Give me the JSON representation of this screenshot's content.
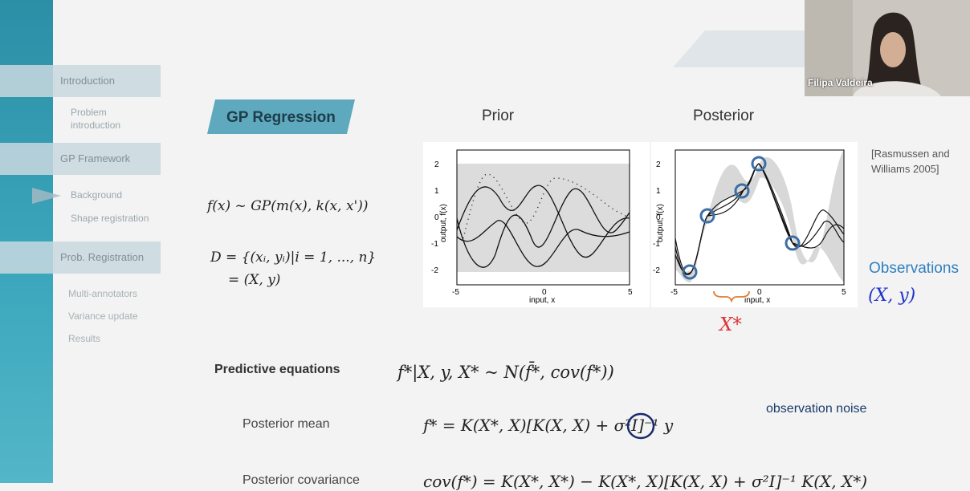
{
  "sidebar": {
    "sections": [
      {
        "label": "Introduction",
        "subitems": [
          "Problem introduction"
        ]
      },
      {
        "label": "GP Framework",
        "subitems": [
          "Background",
          "Shape registration"
        ]
      },
      {
        "label": "Prob. Registration",
        "subitems": [
          "Multi-annotators",
          "Variance update",
          "Results"
        ]
      }
    ],
    "active_item": "Background"
  },
  "slide": {
    "title": "GP Regression",
    "prior_label": "Prior",
    "posterior_label": "Posterior",
    "citation_line1": "[Rasmussen and",
    "citation_line2": "Williams 2005]",
    "gp_def": "f(x) ~ GP(m(x), k(x, x'))",
    "dataset_def_line1": "D = {(xᵢ, yᵢ)|i = 1, ..., n}",
    "dataset_def_line2": "= (X, y)",
    "observations_label": "Observations",
    "observations_math": "(X, y)",
    "xstar_label": "X*",
    "predictive_label": "Predictive equations",
    "predictive_eq": "f*|X, y, X* ~ N(f̄*, cov(f*))",
    "posterior_mean_label": "Posterior mean",
    "posterior_mean_eq": "f* = K(X*, X)[K(X, X) + σ²I]⁻¹ y",
    "noise_label": "observation noise",
    "posterior_cov_label": "Posterior covariance",
    "posterior_cov_eq": "cov(f*) = K(X*, X*) − K(X*, X)[K(X, X) + σ²I]⁻¹ K(X, X*)"
  },
  "plots": {
    "ylabel": "output, f(x)",
    "xlabel": "input, x",
    "x_ticks": [
      "-5",
      "0",
      "5"
    ],
    "y_ticks": [
      "2",
      "1",
      "0",
      "-1",
      "-2"
    ]
  },
  "video": {
    "participant_name": "Filipa Valdeira"
  },
  "colors": {
    "accent": "#3aa3b8",
    "badge": "#5fa9be",
    "red": "#d33333",
    "blue": "#2233cc",
    "circle": "#3b6fa6"
  }
}
